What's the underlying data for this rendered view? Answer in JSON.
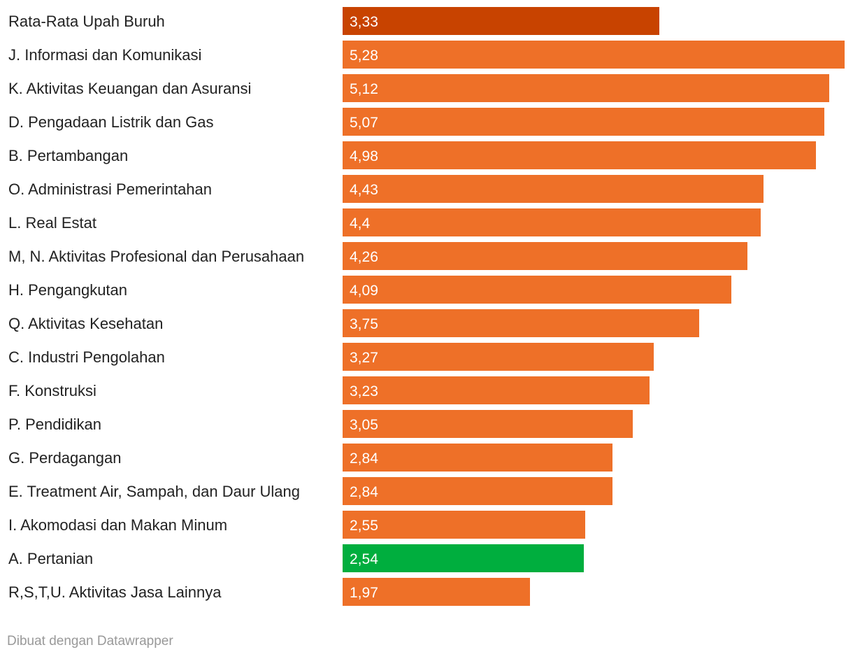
{
  "chart_data": {
    "type": "bar",
    "orientation": "horizontal",
    "categories": [
      "Rata-Rata Upah Buruh",
      "J. Informasi dan Komunikasi",
      "K. Aktivitas Keuangan dan Asuransi",
      "D. Pengadaan Listrik dan Gas",
      "B. Pertambangan",
      "O. Administrasi Pemerintahan",
      "L. Real Estat",
      "M, N. Aktivitas Profesional dan Perusahaan",
      "H. Pengangkutan",
      "Q. Aktivitas Kesehatan",
      "C. Industri Pengolahan",
      "F. Konstruksi",
      "P. Pendidikan",
      "G. Perdagangan",
      "E. Treatment Air, Sampah, dan Daur Ulang",
      "I. Akomodasi dan Makan Minum",
      "A. Pertanian",
      "R,S,T,U. Aktivitas Jasa Lainnya"
    ],
    "values": [
      3.33,
      5.28,
      5.12,
      5.07,
      4.98,
      4.43,
      4.4,
      4.26,
      4.09,
      3.75,
      3.27,
      3.23,
      3.05,
      2.84,
      2.84,
      2.55,
      2.54,
      1.97
    ],
    "value_labels": [
      "3,33",
      "5,28",
      "5,12",
      "5,07",
      "4,98",
      "4,43",
      "4,4",
      "4,26",
      "4,09",
      "3,75",
      "3,27",
      "3,23",
      "3,05",
      "2,84",
      "2,84",
      "2,55",
      "2,54",
      "1,97"
    ],
    "colors": {
      "default": "#ee7028",
      "Rata-Rata Upah Buruh": "#c84300",
      "A. Pertanian": "#00ae3e"
    },
    "xlim": [
      0,
      5.28
    ],
    "grid": false,
    "legend": "none"
  },
  "footer": {
    "credit": "Dibuat dengan Datawrapper"
  }
}
